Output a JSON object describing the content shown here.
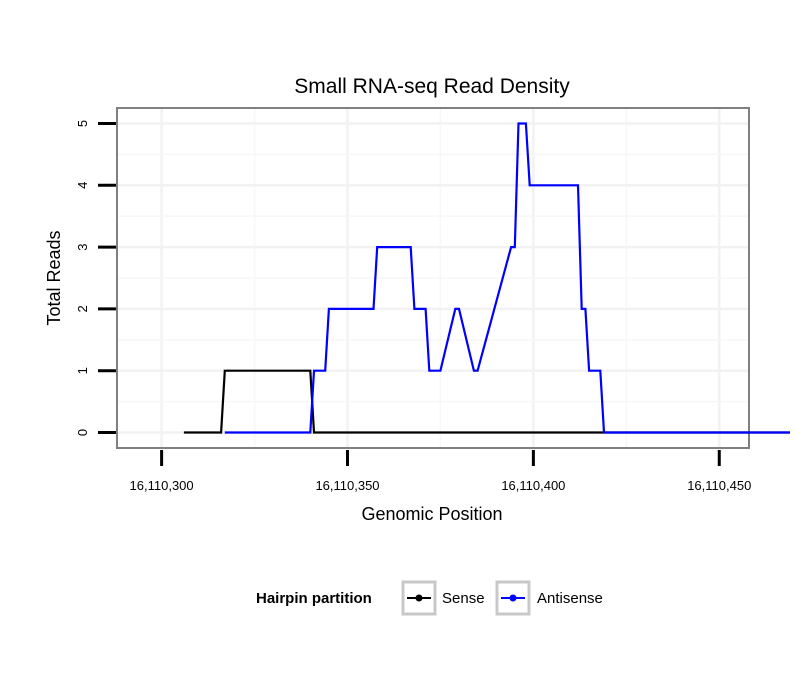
{
  "chart_data": {
    "type": "line",
    "title": "Small RNA-seq Read Density",
    "xlabel": "Genomic Position",
    "ylabel": "Total Reads",
    "xlim": [
      16110288,
      16110458
    ],
    "ylim": [
      -0.25,
      5.25
    ],
    "x_ticks": [
      16110300,
      16110350,
      16110400,
      16110450
    ],
    "x_tick_labels": [
      "16,110,300",
      "16,110,350",
      "16,110,400",
      "16,110,450"
    ],
    "y_ticks": [
      0,
      1,
      2,
      3,
      4,
      5
    ],
    "y_tick_labels": [
      "0",
      "1",
      "2",
      "3",
      "4",
      "5"
    ],
    "grid": true,
    "legend": {
      "title": "Hairpin partition",
      "position": "bottom"
    },
    "series": [
      {
        "name": "Sense",
        "color": "#000000",
        "x": [
          16110306,
          16110316,
          16110317,
          16110340,
          16110341,
          16110469
        ],
        "y": [
          0,
          0,
          1,
          1,
          0,
          0
        ]
      },
      {
        "name": "Antisense",
        "color": "#0000ff",
        "x": [
          16110317,
          16110340,
          16110341,
          16110344,
          16110345,
          16110357,
          16110358,
          16110367,
          16110368,
          16110371,
          16110372,
          16110375,
          16110379,
          16110380,
          16110384,
          16110385,
          16110394,
          16110395,
          16110396,
          16110398,
          16110399,
          16110400,
          16110412,
          16110413,
          16110414,
          16110415,
          16110418,
          16110419,
          16110469
        ],
        "y": [
          0,
          0,
          1,
          1,
          2,
          2,
          3,
          3,
          2,
          2,
          1,
          1,
          2,
          2,
          1,
          1,
          3,
          3,
          5,
          5,
          4,
          4,
          4,
          2,
          2,
          1,
          1,
          0,
          0
        ]
      }
    ]
  }
}
